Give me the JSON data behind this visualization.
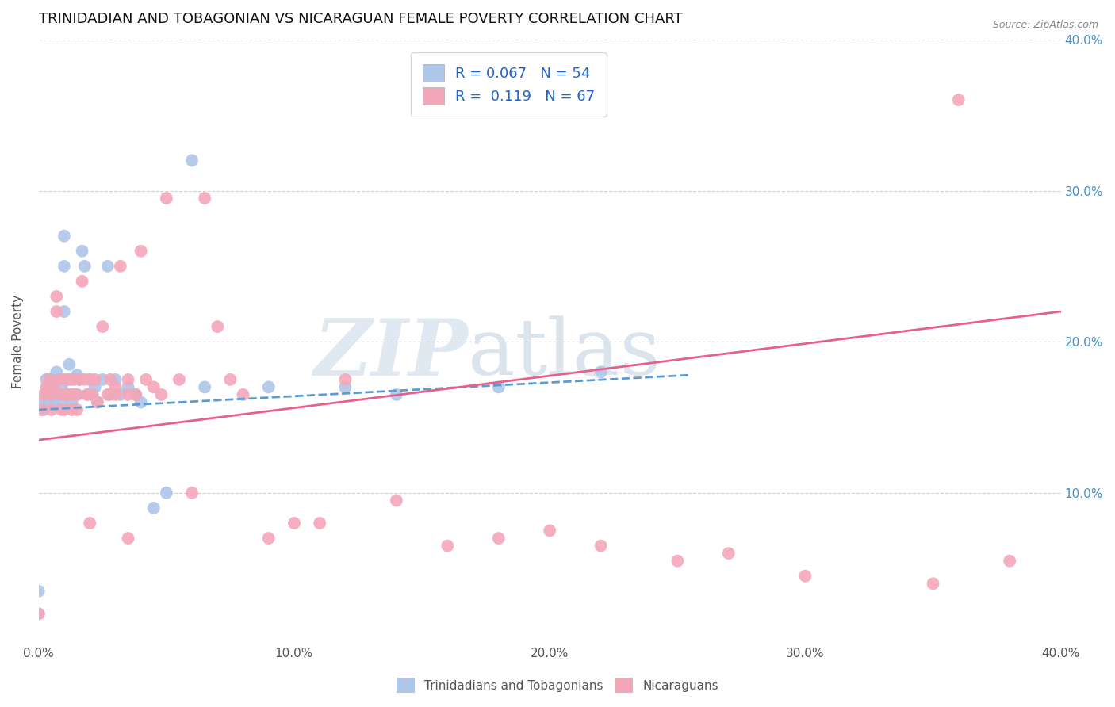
{
  "title": "TRINIDADIAN AND TOBAGONIAN VS NICARAGUAN FEMALE POVERTY CORRELATION CHART",
  "source": "Source: ZipAtlas.com",
  "ylabel": "Female Poverty",
  "xlim": [
    0.0,
    0.4
  ],
  "ylim": [
    0.0,
    0.4
  ],
  "xtick_labels": [
    "0.0%",
    "10.0%",
    "20.0%",
    "30.0%",
    "40.0%"
  ],
  "xtick_vals": [
    0.0,
    0.1,
    0.2,
    0.3,
    0.4
  ],
  "ytick_vals": [
    0.1,
    0.2,
    0.3,
    0.4
  ],
  "right_ytick_labels": [
    "10.0%",
    "20.0%",
    "30.0%",
    "40.0%"
  ],
  "watermark_zip": "ZIP",
  "watermark_atlas": "atlas",
  "color_blue": "#aec6e8",
  "color_pink": "#f4a7b9",
  "line_color_blue": "#5b9bd5",
  "line_color_pink": "#e8608a",
  "background_color": "#ffffff",
  "grid_color": "#cccccc",
  "title_fontsize": 13,
  "label_fontsize": 11,
  "tick_fontsize": 11,
  "blue_R": 0.067,
  "blue_N": 54,
  "pink_R": 0.119,
  "pink_N": 67,
  "blue_line_x": [
    0.0,
    0.255
  ],
  "blue_line_y": [
    0.155,
    0.178
  ],
  "pink_line_x": [
    0.0,
    0.4
  ],
  "pink_line_y": [
    0.135,
    0.22
  ],
  "blue_scatter_x": [
    0.001,
    0.002,
    0.003,
    0.003,
    0.004,
    0.004,
    0.005,
    0.005,
    0.006,
    0.006,
    0.007,
    0.007,
    0.008,
    0.008,
    0.009,
    0.009,
    0.01,
    0.01,
    0.01,
    0.011,
    0.012,
    0.012,
    0.013,
    0.013,
    0.014,
    0.015,
    0.015,
    0.016,
    0.017,
    0.018,
    0.019,
    0.02,
    0.021,
    0.022,
    0.023,
    0.025,
    0.027,
    0.028,
    0.03,
    0.032,
    0.035,
    0.038,
    0.04,
    0.045,
    0.05,
    0.06,
    0.065,
    0.09,
    0.12,
    0.14,
    0.18,
    0.22,
    0.0,
    0.0
  ],
  "blue_scatter_y": [
    0.16,
    0.155,
    0.175,
    0.165,
    0.17,
    0.16,
    0.175,
    0.165,
    0.17,
    0.16,
    0.18,
    0.165,
    0.175,
    0.165,
    0.17,
    0.16,
    0.27,
    0.25,
    0.22,
    0.175,
    0.185,
    0.165,
    0.175,
    0.16,
    0.165,
    0.178,
    0.165,
    0.175,
    0.26,
    0.25,
    0.165,
    0.175,
    0.165,
    0.17,
    0.16,
    0.175,
    0.25,
    0.165,
    0.175,
    0.165,
    0.17,
    0.165,
    0.16,
    0.09,
    0.1,
    0.32,
    0.17,
    0.17,
    0.17,
    0.165,
    0.17,
    0.18,
    0.035,
    0.02
  ],
  "pink_scatter_x": [
    0.001,
    0.002,
    0.003,
    0.004,
    0.005,
    0.005,
    0.006,
    0.007,
    0.007,
    0.008,
    0.009,
    0.009,
    0.01,
    0.011,
    0.012,
    0.013,
    0.013,
    0.014,
    0.015,
    0.015,
    0.016,
    0.017,
    0.018,
    0.019,
    0.02,
    0.021,
    0.022,
    0.023,
    0.025,
    0.027,
    0.028,
    0.03,
    0.03,
    0.032,
    0.035,
    0.035,
    0.038,
    0.04,
    0.042,
    0.045,
    0.048,
    0.05,
    0.055,
    0.06,
    0.065,
    0.07,
    0.075,
    0.08,
    0.09,
    0.1,
    0.11,
    0.12,
    0.14,
    0.16,
    0.18,
    0.2,
    0.22,
    0.25,
    0.27,
    0.3,
    0.35,
    0.38,
    0.36,
    0.01,
    0.02,
    0.035,
    0.0
  ],
  "pink_scatter_y": [
    0.155,
    0.165,
    0.17,
    0.175,
    0.165,
    0.155,
    0.17,
    0.23,
    0.22,
    0.175,
    0.165,
    0.155,
    0.175,
    0.165,
    0.175,
    0.165,
    0.155,
    0.175,
    0.165,
    0.155,
    0.175,
    0.24,
    0.175,
    0.165,
    0.175,
    0.165,
    0.175,
    0.16,
    0.21,
    0.165,
    0.175,
    0.165,
    0.17,
    0.25,
    0.165,
    0.175,
    0.165,
    0.26,
    0.175,
    0.17,
    0.165,
    0.295,
    0.175,
    0.1,
    0.295,
    0.21,
    0.175,
    0.165,
    0.07,
    0.08,
    0.08,
    0.175,
    0.095,
    0.065,
    0.07,
    0.075,
    0.065,
    0.055,
    0.06,
    0.045,
    0.04,
    0.055,
    0.36,
    0.155,
    0.08,
    0.07,
    0.02
  ]
}
